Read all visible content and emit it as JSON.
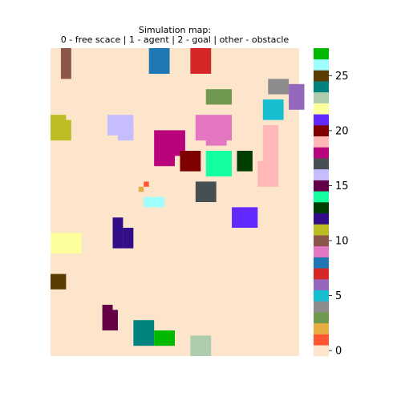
{
  "chart_data": {
    "type": "heatmap",
    "title_line1": "Simulation map:",
    "title_line2": "0 - free scace | 1 - agent | 2 - goal | other - obstacle",
    "grid_size": [
      48,
      60
    ],
    "xlabel": "",
    "ylabel": "",
    "axes_visible": false,
    "colorbar": {
      "location": "right",
      "range": [
        0,
        27
      ],
      "ticks": [
        0,
        5,
        10,
        15,
        20,
        25
      ],
      "colors": [
        "#fde5cc",
        "#ff5733",
        "#e8ad42",
        "#6f9951",
        "#8c8c8c",
        "#17becf",
        "#9467bd",
        "#d62728",
        "#1f77b4",
        "#e377c2",
        "#8c564b",
        "#bcbd22",
        "#310e87",
        "#013d00",
        "#13ffa0",
        "#630046",
        "#c6bdff",
        "#464f51",
        "#b9037c",
        "#ffb7b8",
        "#7e0000",
        "#6229ff",
        "#feff9d",
        "#aecbae",
        "#00837e",
        "#5a3b00",
        "#9fffff",
        "#00b900"
      ]
    },
    "cells": [
      {
        "value": 1,
        "col": 18,
        "row": 26
      },
      {
        "value": 2,
        "col": 17,
        "row": 27
      },
      {
        "value": 10,
        "col": 2,
        "row": 0,
        "w": 2,
        "h": 6
      },
      {
        "value": 8,
        "col": 19,
        "row": 0,
        "w": 4,
        "h": 5
      },
      {
        "value": 7,
        "col": 27,
        "row": 0,
        "w": 4,
        "h": 5
      },
      {
        "value": 4,
        "col": 42,
        "row": 6,
        "w": 4,
        "h": 3
      },
      {
        "value": 6,
        "col": 46,
        "row": 7,
        "w": 3,
        "h": 5
      },
      {
        "value": 3,
        "col": 30,
        "row": 8,
        "w": 5,
        "h": 3
      },
      {
        "value": 5,
        "col": 41,
        "row": 10,
        "w": 4,
        "h": 4
      },
      {
        "value": 11,
        "col": 0,
        "row": 13,
        "w": 3,
        "h": 5
      },
      {
        "value": 11,
        "col": 3,
        "row": 14,
        "w": 1,
        "h": 4
      },
      {
        "value": 16,
        "col": 11,
        "row": 13,
        "w": 5,
        "h": 4
      },
      {
        "value": 16,
        "col": 13,
        "row": 15,
        "w": 3,
        "h": 3
      },
      {
        "value": 9,
        "col": 28,
        "row": 13,
        "w": 7,
        "h": 5
      },
      {
        "value": 9,
        "col": 30,
        "row": 17,
        "w": 4,
        "h": 2
      },
      {
        "value": 18,
        "col": 20,
        "row": 16,
        "w": 4,
        "h": 7
      },
      {
        "value": 18,
        "col": 24,
        "row": 16,
        "w": 2,
        "h": 5
      },
      {
        "value": 19,
        "col": 41,
        "row": 15,
        "w": 3,
        "h": 12
      },
      {
        "value": 19,
        "col": 40,
        "row": 22,
        "w": 1,
        "h": 5
      },
      {
        "value": 20,
        "col": 25,
        "row": 20,
        "w": 4,
        "h": 4
      },
      {
        "value": 14,
        "col": 30,
        "row": 20,
        "w": 5,
        "h": 5
      },
      {
        "value": 13,
        "col": 36,
        "row": 20,
        "w": 3,
        "h": 4
      },
      {
        "value": 17,
        "col": 28,
        "row": 26,
        "w": 4,
        "h": 4
      },
      {
        "value": 26,
        "col": 18,
        "row": 29,
        "w": 4,
        "h": 2
      },
      {
        "value": 21,
        "col": 35,
        "row": 31,
        "w": 5,
        "h": 4
      },
      {
        "value": 12,
        "col": 12,
        "row": 33,
        "w": 2,
        "h": 6
      },
      {
        "value": 12,
        "col": 14,
        "row": 35,
        "w": 2,
        "h": 4
      },
      {
        "value": 22,
        "col": 0,
        "row": 36,
        "w": 6,
        "h": 4
      },
      {
        "value": 25,
        "col": 0,
        "row": 44,
        "w": 3,
        "h": 3
      },
      {
        "value": 15,
        "col": 10,
        "row": 50,
        "w": 2,
        "h": 5
      },
      {
        "value": 15,
        "col": 12,
        "row": 51,
        "w": 1,
        "h": 4
      },
      {
        "value": 24,
        "col": 16,
        "row": 53,
        "w": 4,
        "h": 5
      },
      {
        "value": 27,
        "col": 20,
        "row": 55,
        "w": 4,
        "h": 3
      },
      {
        "value": 23,
        "col": 27,
        "row": 56,
        "w": 4,
        "h": 4
      }
    ]
  }
}
